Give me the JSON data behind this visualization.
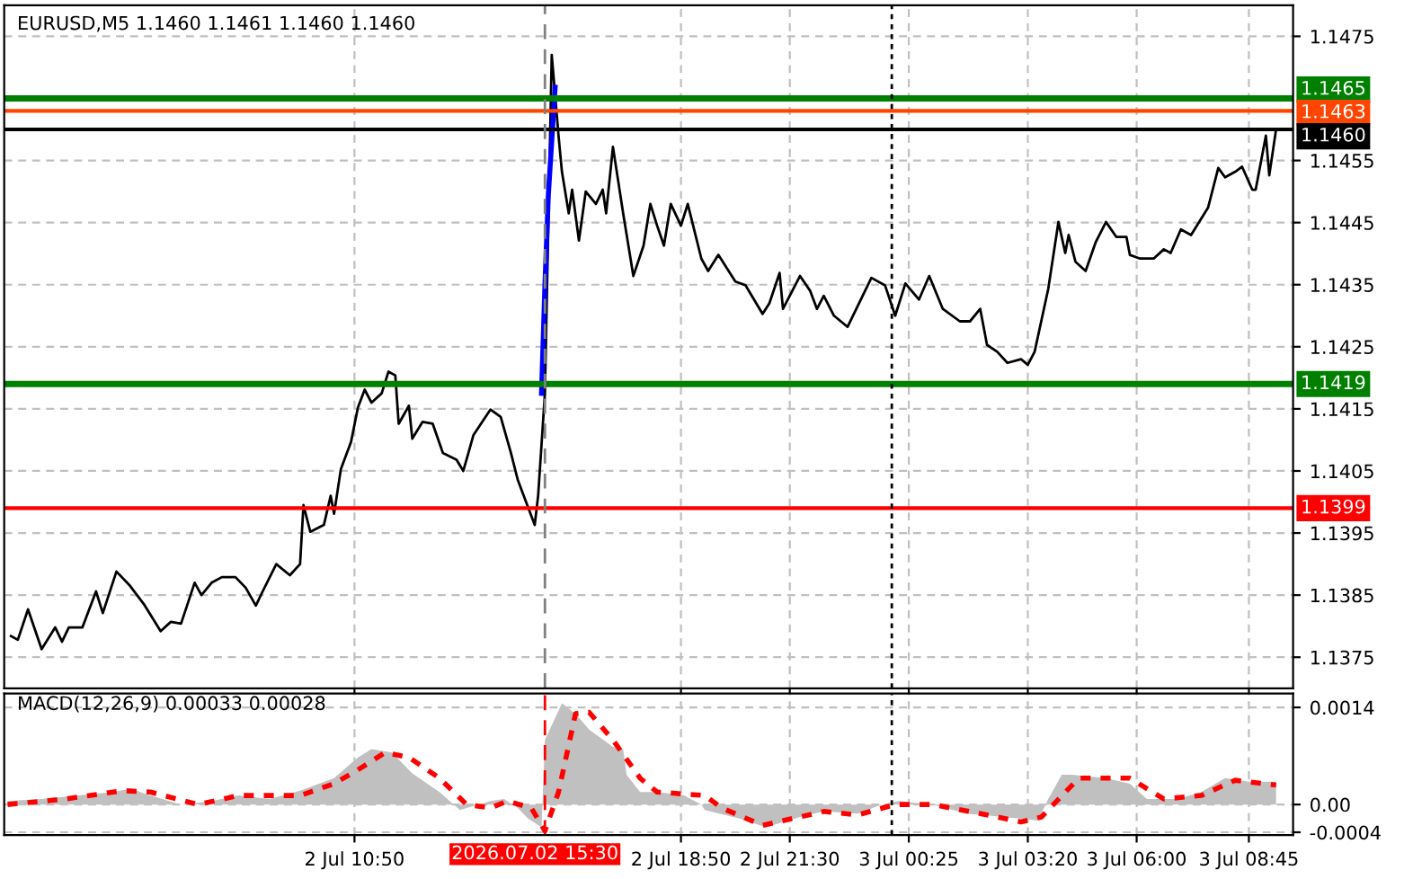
{
  "chart_data": [
    {
      "type": "line",
      "title": "EURUSD,M5 1.1460 1.1461 1.1460 1.1460",
      "xlim": [
        "2026-07-02T02:15",
        "2026-07-03T09:50"
      ],
      "ylim": [
        1.137,
        1.148
      ],
      "xticks": [
        {
          "value": "2026-07-02T10:50",
          "label": null
        },
        {
          "value": "2026-07-02T18:50",
          "label": null
        },
        {
          "value": "2026-07-02T21:30",
          "label": null
        },
        {
          "value": "2026-07-03T00:25",
          "label": null
        },
        {
          "value": "2026-07-03T03:20",
          "label": null
        },
        {
          "value": "2026-07-03T06:00",
          "label": null
        },
        {
          "value": "2026-07-03T08:45",
          "label": null
        }
      ],
      "yticks": [
        1.1375,
        1.1385,
        1.1395,
        1.1405,
        1.1415,
        1.1425,
        1.1435,
        1.1445,
        1.1455,
        1.1475
      ],
      "tick_labels": "y",
      "grid": true,
      "legend": false,
      "series": [
        {
          "color": "#000000",
          "x": [
            "2026-07-02T02:25",
            "2026-07-02T02:35",
            "2026-07-02T02:50",
            "2026-07-02T03:10",
            "2026-07-02T03:30",
            "2026-07-02T03:40",
            "2026-07-02T03:50",
            "2026-07-02T04:10",
            "2026-07-02T04:30",
            "2026-07-02T04:40",
            "2026-07-02T05:00",
            "2026-07-02T05:20",
            "2026-07-02T05:40",
            "2026-07-02T06:05",
            "2026-07-02T06:20",
            "2026-07-02T06:35",
            "2026-07-02T06:55",
            "2026-07-02T07:05",
            "2026-07-02T07:20",
            "2026-07-02T07:35",
            "2026-07-02T07:55",
            "2026-07-02T08:10",
            "2026-07-02T08:25",
            "2026-07-02T08:35",
            "2026-07-02T08:55",
            "2026-07-02T09:15",
            "2026-07-02T09:30",
            "2026-07-02T09:35",
            "2026-07-02T09:45",
            "2026-07-02T10:05",
            "2026-07-02T10:15",
            "2026-07-02T10:20",
            "2026-07-02T10:30",
            "2026-07-02T10:45",
            "2026-07-02T10:55",
            "2026-07-02T11:05",
            "2026-07-02T11:15",
            "2026-07-02T11:30",
            "2026-07-02T11:40",
            "2026-07-02T11:50",
            "2026-07-02T11:55",
            "2026-07-02T12:10",
            "2026-07-02T12:15",
            "2026-07-02T12:30",
            "2026-07-02T12:45",
            "2026-07-02T13:00",
            "2026-07-02T13:20",
            "2026-07-02T13:30",
            "2026-07-02T13:45",
            "2026-07-02T14:10",
            "2026-07-02T14:25",
            "2026-07-02T14:40",
            "2026-07-02T14:50",
            "2026-07-02T15:05",
            "2026-07-02T15:15",
            "2026-07-02T15:20",
            "2026-07-02T15:30",
            "2026-07-02T15:40",
            "2026-07-02T15:50",
            "2026-07-02T15:55",
            "2026-07-02T16:05",
            "2026-07-02T16:10",
            "2026-07-02T16:20",
            "2026-07-02T16:30",
            "2026-07-02T16:45",
            "2026-07-02T16:55",
            "2026-07-02T17:00",
            "2026-07-02T17:10",
            "2026-07-02T17:25",
            "2026-07-02T17:40",
            "2026-07-02T17:55",
            "2026-07-02T18:05",
            "2026-07-02T18:15",
            "2026-07-02T18:25",
            "2026-07-02T18:35",
            "2026-07-02T18:50",
            "2026-07-02T19:00",
            "2026-07-02T19:20",
            "2026-07-02T19:30",
            "2026-07-02T19:45",
            "2026-07-02T20:10",
            "2026-07-02T20:25",
            "2026-07-02T20:50",
            "2026-07-02T21:00",
            "2026-07-02T21:15",
            "2026-07-02T21:20",
            "2026-07-02T21:45",
            "2026-07-02T22:00",
            "2026-07-02T22:10",
            "2026-07-02T22:20",
            "2026-07-02T22:35",
            "2026-07-02T22:55",
            "2026-07-02T23:30",
            "2026-07-02T23:50",
            "2026-07-03T00:05",
            "2026-07-03T00:20",
            "2026-07-03T00:40",
            "2026-07-03T00:55",
            "2026-07-03T01:15",
            "2026-07-03T01:40",
            "2026-07-03T01:55",
            "2026-07-03T02:10",
            "2026-07-03T02:20",
            "2026-07-03T02:35",
            "2026-07-03T02:50",
            "2026-07-03T03:10",
            "2026-07-03T03:20",
            "2026-07-03T03:30",
            "2026-07-03T03:50",
            "2026-07-03T04:05",
            "2026-07-03T04:15",
            "2026-07-03T04:20",
            "2026-07-03T04:30",
            "2026-07-03T04:45",
            "2026-07-03T05:00",
            "2026-07-03T05:15",
            "2026-07-03T05:30",
            "2026-07-03T05:45",
            "2026-07-03T05:50",
            "2026-07-03T06:05",
            "2026-07-03T06:25",
            "2026-07-03T06:40",
            "2026-07-03T06:50",
            "2026-07-03T07:05",
            "2026-07-03T07:20",
            "2026-07-03T07:45",
            "2026-07-03T08:00",
            "2026-07-03T08:10",
            "2026-07-03T08:25",
            "2026-07-03T08:35",
            "2026-07-03T08:50",
            "2026-07-03T08:55",
            "2026-07-03T09:10",
            "2026-07-03T09:15",
            "2026-07-03T09:25"
          ],
          "values": [
            1.13784,
            1.13778,
            1.13827,
            1.13763,
            1.13798,
            1.13775,
            1.13798,
            1.13798,
            1.13856,
            1.13821,
            1.13888,
            1.13865,
            1.13836,
            1.13792,
            1.13807,
            1.13804,
            1.1387,
            1.1385,
            1.1387,
            1.13879,
            1.13879,
            1.13862,
            1.13833,
            1.13856,
            1.139,
            1.13882,
            1.139,
            1.13995,
            1.13952,
            1.13963,
            1.1401,
            1.13981,
            1.14053,
            1.14097,
            1.14152,
            1.14181,
            1.1416,
            1.14175,
            1.1421,
            1.14204,
            1.14126,
            1.14155,
            1.14102,
            1.14129,
            1.14126,
            1.14079,
            1.14068,
            1.1405,
            1.14108,
            1.14149,
            1.14137,
            1.14079,
            1.14036,
            1.13992,
            1.13963,
            1.1401,
            1.14175,
            1.1472,
            1.1459,
            1.14532,
            1.14465,
            1.14503,
            1.14421,
            1.145,
            1.1448,
            1.14503,
            1.14465,
            1.14572,
            1.14465,
            1.14364,
            1.14413,
            1.1448,
            1.14445,
            1.14413,
            1.1448,
            1.14445,
            1.1448,
            1.14392,
            1.14372,
            1.14398,
            1.14355,
            1.14349,
            1.14303,
            1.1432,
            1.14369,
            1.14311,
            1.14364,
            1.1434,
            1.14311,
            1.14332,
            1.143,
            1.14282,
            1.14361,
            1.14349,
            1.143,
            1.14352,
            1.14326,
            1.14364,
            1.14311,
            1.14291,
            1.14291,
            1.14311,
            1.14253,
            1.14242,
            1.14224,
            1.1423,
            1.14221,
            1.14242,
            1.14343,
            1.14451,
            1.14401,
            1.1443,
            1.14387,
            1.14372,
            1.14419,
            1.14451,
            1.14427,
            1.14427,
            1.14398,
            1.14392,
            1.14392,
            1.14407,
            1.14401,
            1.14439,
            1.1443,
            1.14474,
            1.14538,
            1.14523,
            1.14532,
            1.1454,
            1.14503,
            1.14503,
            1.1459,
            1.14526,
            1.146
          ]
        },
        {
          "color": "#0000ff",
          "x": [
            "2026-07-02T15:25",
            "2026-07-02T15:30",
            "2026-07-02T15:35",
            "2026-07-02T15:45"
          ],
          "values": [
            1.14175,
            1.14349,
            1.14494,
            1.14668
          ]
        }
      ],
      "ref_lines": [
        {
          "axis": "y",
          "value": 1.1465,
          "label": "1.1465",
          "color": "#008000"
        },
        {
          "axis": "y",
          "value": 1.1463,
          "label": "1.1463",
          "color": "#ff4500"
        },
        {
          "axis": "y",
          "value": 1.146,
          "label": "1.1460",
          "color": "#000000"
        },
        {
          "axis": "y",
          "value": 1.1419,
          "label": "1.1419",
          "color": "#008000"
        },
        {
          "axis": "y",
          "value": 1.1399,
          "label": "1.1399",
          "color": "#ff0000"
        },
        {
          "axis": "x",
          "value": "2026-07-02T15:30",
          "color": "#808080",
          "line_style": "dashed"
        },
        {
          "axis": "x",
          "value": "2026-07-03T00:00",
          "color": "#000000",
          "line_style": "dotted"
        }
      ]
    },
    {
      "type": "area",
      "title": "MACD(12,26,9) 0.00033 0.00028",
      "xlim": [
        "2026-07-02T02:15",
        "2026-07-03T09:50"
      ],
      "ylim": [
        -0.00044,
        0.0016
      ],
      "xticks": [
        {
          "value": "2026-07-02T10:50",
          "label": "2 Jul 10:50"
        },
        {
          "value": "2026-07-02T18:50",
          "label": "2 Jul 18:50"
        },
        {
          "value": "2026-07-02T21:30",
          "label": "2 Jul 21:30"
        },
        {
          "value": "2026-07-03T00:25",
          "label": "3 Jul 00:25"
        },
        {
          "value": "2026-07-03T03:20",
          "label": "3 Jul 03:20"
        },
        {
          "value": "2026-07-03T06:00",
          "label": "3 Jul 06:00"
        },
        {
          "value": "2026-07-03T08:45",
          "label": "3 Jul 08:45"
        }
      ],
      "yticks": [
        {
          "value": 0.0014,
          "label": "0.0014"
        },
        {
          "value": 0,
          "label": "0.00"
        },
        {
          "value": -0.0004,
          "label": "-0.0004"
        }
      ],
      "grid": true,
      "legend": false,
      "series": [
        {
          "color": "#c0c0c0",
          "x": [
            "2026-07-02T02:20",
            "2026-07-02T03:10",
            "2026-07-02T04:55",
            "2026-07-02T05:20",
            "2026-07-02T05:50",
            "2026-07-02T06:35",
            "2026-07-02T07:20",
            "2026-07-02T08:00",
            "2026-07-02T08:45",
            "2026-07-02T09:30",
            "2026-07-02T10:20",
            "2026-07-02T10:55",
            "2026-07-02T11:15",
            "2026-07-02T11:45",
            "2026-07-02T12:15",
            "2026-07-02T12:55",
            "2026-07-02T13:25",
            "2026-07-02T14:10",
            "2026-07-02T14:30",
            "2026-07-02T14:50",
            "2026-07-02T15:05",
            "2026-07-02T15:25",
            "2026-07-02T15:30",
            "2026-07-02T15:55",
            "2026-07-02T16:15",
            "2026-07-02T16:35",
            "2026-07-02T17:10",
            "2026-07-02T17:25",
            "2026-07-02T17:30",
            "2026-07-02T17:50",
            "2026-07-02T18:15",
            "2026-07-02T18:55",
            "2026-07-02T19:20",
            "2026-07-02T19:25",
            "2026-07-02T20:15",
            "2026-07-02T20:55",
            "2026-07-02T21:45",
            "2026-07-02T22:20",
            "2026-07-02T23:10",
            "2026-07-02T23:45",
            "2026-07-03T00:10",
            "2026-07-03T01:00",
            "2026-07-03T01:50",
            "2026-07-03T02:45",
            "2026-07-03T03:35",
            "2026-07-03T03:50",
            "2026-07-03T04:10",
            "2026-07-03T04:25",
            "2026-07-03T05:15",
            "2026-07-03T05:50",
            "2026-07-03T06:15",
            "2026-07-03T07:00",
            "2026-07-03T07:35",
            "2026-07-03T08:10",
            "2026-07-03T08:45",
            "2026-07-03T09:25"
          ],
          "values": [
            5e-05,
            8e-05,
            0.00018,
            0.00023,
            0.00013,
            0.0,
            5e-05,
            0.00013,
            8e-05,
            0.0002,
            0.00038,
            0.00068,
            0.0008,
            0.00075,
            0.00045,
            0.00018,
            -8e-05,
            5e-05,
            8e-05,
            -5e-05,
            -0.0002,
            -0.00033,
            0.00093,
            0.00146,
            0.00131,
            0.00108,
            0.00083,
            0.0008,
            0.00043,
            0.00018,
            0.00018,
            0.00013,
            0.0,
            -8e-05,
            -0.0002,
            -0.00033,
            -0.00018,
            -0.0001,
            -0.00013,
            0.0,
            5e-05,
            0.0,
            -0.00013,
            -0.00018,
            -0.00023,
            8e-05,
            0.00043,
            0.00043,
            0.00038,
            0.0003,
            8e-05,
            8e-05,
            0.00018,
            0.00038,
            0.00033,
            0.00033
          ]
        },
        {
          "type": "line",
          "color": "#ff0000",
          "line_style": "dotted",
          "x": [
            "2026-07-02T02:20",
            "2026-07-02T03:45",
            "2026-07-02T05:10",
            "2026-07-02T05:50",
            "2026-07-02T07:00",
            "2026-07-02T08:00",
            "2026-07-02T09:30",
            "2026-07-02T10:20",
            "2026-07-02T10:55",
            "2026-07-02T11:35",
            "2026-07-02T12:10",
            "2026-07-02T12:55",
            "2026-07-02T13:35",
            "2026-07-02T14:10",
            "2026-07-02T14:35",
            "2026-07-02T15:10",
            "2026-07-02T15:30",
            "2026-07-02T15:50",
            "2026-07-02T16:15",
            "2026-07-02T16:35",
            "2026-07-02T17:10",
            "2026-07-02T17:50",
            "2026-07-02T18:15",
            "2026-07-02T19:25",
            "2026-07-02T19:50",
            "2026-07-02T20:50",
            "2026-07-02T21:35",
            "2026-07-02T22:20",
            "2026-07-02T23:10",
            "2026-07-03T00:05",
            "2026-07-03T01:00",
            "2026-07-03T02:10",
            "2026-07-03T03:10",
            "2026-07-03T03:40",
            "2026-07-03T04:35",
            "2026-07-03T05:50",
            "2026-07-03T06:40",
            "2026-07-03T07:35",
            "2026-07-03T08:25",
            "2026-07-03T09:25"
          ],
          "values": [
            0.0,
            8e-05,
            0.0002,
            0.00018,
            0.0,
            0.00013,
            0.00013,
            0.0003,
            0.0005,
            0.00075,
            0.00068,
            0.00038,
            0.0,
            -5e-05,
            5e-05,
            -5e-05,
            -0.00038,
            0.00018,
            0.00131,
            0.00133,
            0.00093,
            0.00038,
            0.00018,
            0.00013,
            -5e-05,
            -0.0003,
            -0.0002,
            -0.0001,
            -0.00015,
            0.0,
            0.0,
            -0.00013,
            -0.00025,
            -0.00018,
            0.00038,
            0.00038,
            8e-05,
            0.00013,
            0.00035,
            0.00028
          ]
        }
      ],
      "ref_lines": [
        {
          "axis": "x",
          "value": "2026-07-02T15:30",
          "label": "2026.07.02 15:30",
          "color": "#ff0000",
          "line_style": "dashed"
        },
        {
          "axis": "x",
          "value": "2026-07-03T00:00",
          "color": "#000000",
          "line_style": "dotted"
        }
      ]
    }
  ]
}
